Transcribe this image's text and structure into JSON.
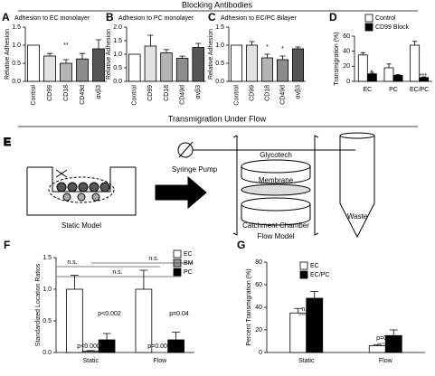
{
  "headers": {
    "top": "Blocking Antibodies",
    "middle": "Transmigration Under Flow"
  },
  "diagram": {
    "panel": "E",
    "syringe": "Syringe Pump",
    "glycotech": "Glycotech",
    "membrane": "Membrane",
    "catchment": "Catchment Chamber",
    "waste": "Waste",
    "static": "Static Model",
    "flow": "Flow Model"
  },
  "chart_data": [
    {
      "type": "bar",
      "panel": "A",
      "title": "Adhesion to EC monolayer",
      "ylabel": "Relative Adhesion",
      "categories": [
        "Control",
        "CD99",
        "CD18",
        "CD49d",
        "αvβ3"
      ],
      "values": [
        1.0,
        0.7,
        0.5,
        0.62,
        0.9
      ],
      "errors": [
        0,
        0.07,
        0.1,
        0.15,
        0.25
      ],
      "colors": [
        "#ffffff",
        "#e2e2e2",
        "#b4b4b4",
        "#8c8c8c",
        "#555555"
      ],
      "ylim": [
        0,
        1.5
      ],
      "yticks": [
        {
          "value": 0,
          "label": "0.0"
        },
        {
          "value": 0.5,
          "label": "0.5"
        },
        {
          "value": 1,
          "label": "1.0"
        },
        {
          "value": 1.5,
          "label": "1.5"
        }
      ],
      "annotations": [
        "**"
      ]
    },
    {
      "type": "bar",
      "panel": "B",
      "title": "Adhesion to PC monolayer",
      "ylabel": "Relative Adhesion",
      "categories": [
        "Control",
        "CD99",
        "CD18",
        "CD49d",
        "αvβ3"
      ],
      "values": [
        1.0,
        1.3,
        1.05,
        0.85,
        1.25
      ],
      "errors": [
        0,
        0.4,
        0.12,
        0.08,
        0.15
      ],
      "colors": [
        "#ffffff",
        "#e2e2e2",
        "#b4b4b4",
        "#8c8c8c",
        "#555555"
      ],
      "ylim": [
        0,
        2
      ],
      "yticks": [
        {
          "value": 0,
          "label": "0.0"
        },
        {
          "value": 0.5,
          "label": "0.5"
        },
        {
          "value": 1,
          "label": "1.0"
        },
        {
          "value": 1.5,
          "label": "1.5"
        },
        {
          "value": 2,
          "label": "2.0"
        }
      ],
      "annotations": []
    },
    {
      "type": "bar",
      "panel": "C",
      "title": "Adhesion to EC/PC Bilayer",
      "ylabel": "Relative Adhesion",
      "categories": [
        "Control",
        "CD99",
        "CD18",
        "CD49d",
        "αvβ3"
      ],
      "values": [
        1.0,
        1.0,
        0.65,
        0.6,
        0.9
      ],
      "errors": [
        0,
        0.1,
        0.1,
        0.1,
        0.05
      ],
      "colors": [
        "#ffffff",
        "#e2e2e2",
        "#b4b4b4",
        "#8c8c8c",
        "#555555"
      ],
      "ylim": [
        0,
        1.5
      ],
      "yticks": [
        {
          "value": 0,
          "label": "0.0"
        },
        {
          "value": 0.5,
          "label": "0.5"
        },
        {
          "value": 1,
          "label": "1.0"
        },
        {
          "value": 1.5,
          "label": "1.5"
        }
      ],
      "annotations": [
        "*",
        "*"
      ]
    },
    {
      "type": "grouped_bar",
      "panel": "D",
      "ylabel": "Transmigration (%)",
      "categories": [
        "EC",
        "PC",
        "EC/PC"
      ],
      "series": [
        {
          "name": "Control",
          "color": "#ffffff",
          "values": [
            35,
            18,
            48
          ],
          "errors": [
            3,
            5,
            5
          ]
        },
        {
          "name": "CD99 Block",
          "color": "#000000",
          "values": [
            10,
            8,
            5
          ],
          "errors": [
            2,
            1,
            1
          ]
        }
      ],
      "ylim": [
        0,
        60
      ],
      "yticks": [
        0,
        20,
        40,
        60
      ],
      "annotations": [
        "*",
        "***"
      ]
    },
    {
      "type": "grouped_bar",
      "panel": "F",
      "ylabel": "Standardized Location Ratios",
      "categories": [
        "Static",
        "Flow"
      ],
      "series": [
        {
          "name": "EC",
          "color": "#ffffff",
          "values": [
            1.0,
            1.0
          ],
          "errors": [
            0.22,
            0.3
          ]
        },
        {
          "name": "BM",
          "color": "#999999",
          "values": [
            0.02,
            0.0
          ],
          "errors": [
            0.01,
            0.0
          ]
        },
        {
          "name": "PC",
          "color": "#000000",
          "values": [
            0.2,
            0.2
          ],
          "errors": [
            0.1,
            0.12
          ]
        }
      ],
      "ylim": [
        0,
        1.5
      ],
      "yticks": [
        {
          "value": 0,
          "label": "0.0"
        },
        {
          "value": 0.5,
          "label": "0.5"
        },
        {
          "value": 1,
          "label": "1.0"
        },
        {
          "value": 1.5,
          "label": "1.5"
        }
      ],
      "annotations": [
        "n.s.",
        "n.s.",
        "n.s.",
        "p<0.0001",
        "p<0.002",
        "p=0.005",
        "p=0.04"
      ]
    },
    {
      "type": "grouped_bar",
      "panel": "G",
      "ylabel": "Percent Transmigration (%)",
      "categories": [
        "Static",
        "Flow"
      ],
      "series": [
        {
          "name": "EC",
          "color": "#ffffff",
          "values": [
            35,
            6
          ],
          "errors": [
            4,
            1
          ]
        },
        {
          "name": "EC/PC",
          "color": "#000000",
          "values": [
            48,
            15
          ],
          "errors": [
            6,
            5
          ]
        }
      ],
      "ylim": [
        0,
        80
      ],
      "yticks": [
        0,
        20,
        40,
        60,
        80
      ],
      "annotations": [
        "n.s.",
        "p=005"
      ]
    }
  ]
}
